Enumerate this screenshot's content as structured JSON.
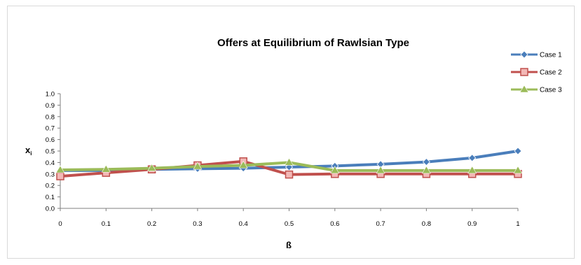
{
  "chart_data": {
    "type": "line",
    "title": "Offers at Equilibrium of Rawlsian Type",
    "xlabel": "ß",
    "ylabel": "x",
    "ylabel_sub": "i",
    "x": [
      0,
      0.1,
      0.2,
      0.3,
      0.4,
      0.5,
      0.6,
      0.7,
      0.8,
      0.9,
      1
    ],
    "x_tick_labels": [
      "0",
      "0.1",
      "0.2",
      "0.3",
      "0.4",
      "0.5",
      "0.6",
      "0.7",
      "0.8",
      "0.9",
      "1"
    ],
    "y_tick_labels": [
      "0.0",
      "0.1",
      "0.2",
      "0.3",
      "0.4",
      "0.5",
      "0.6",
      "0.7",
      "0.8",
      "0.9",
      "1.0"
    ],
    "ylim": [
      0,
      1.0
    ],
    "grid": false,
    "legend_position": "top-right",
    "series": [
      {
        "name": "Case 1",
        "color": "#4a7ebb",
        "marker": "diamond",
        "values": [
          0.33,
          0.33,
          0.34,
          0.345,
          0.35,
          0.36,
          0.37,
          0.385,
          0.405,
          0.44,
          0.5
        ]
      },
      {
        "name": "Case 2",
        "color": "#c0504d",
        "marker": "square",
        "values": [
          0.28,
          0.31,
          0.34,
          0.375,
          0.41,
          0.295,
          0.3,
          0.3,
          0.3,
          0.3,
          0.3
        ]
      },
      {
        "name": "Case 3",
        "color": "#9bbb59",
        "marker": "triangle",
        "values": [
          0.335,
          0.34,
          0.35,
          0.365,
          0.375,
          0.4,
          0.33,
          0.33,
          0.33,
          0.33,
          0.33
        ]
      }
    ]
  }
}
